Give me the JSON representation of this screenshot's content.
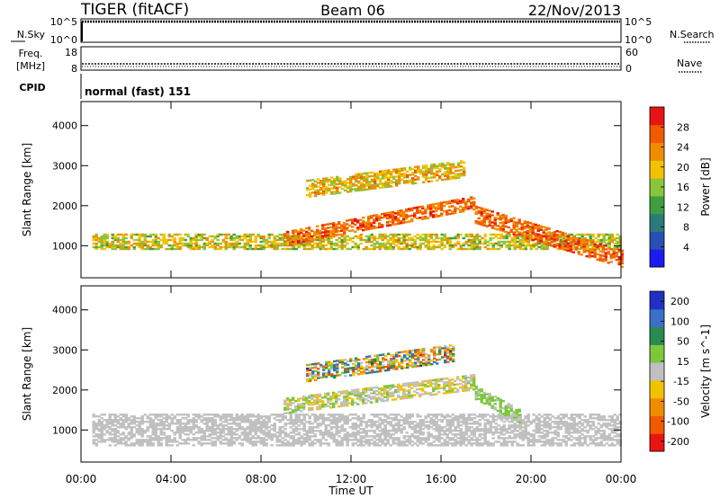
{
  "header": {
    "radar": "TIGER (fitACF)",
    "beam": "Beam 06",
    "date": "22/Nov/2013"
  },
  "panels": {
    "nsky": {
      "left_label": "N.Sky",
      "right_label": "N.Search",
      "left_ticks": [
        "10^5",
        "10^0"
      ],
      "right_ticks": [
        "10^5",
        "10^0"
      ]
    },
    "freq": {
      "left_label_line1": "Freq.",
      "left_label_line2": "[MHz]",
      "right_label": "Nave",
      "left_ticks": [
        "18",
        "8"
      ],
      "right_ticks": [
        "60",
        "0"
      ]
    },
    "cpid": {
      "left_label": "CPID",
      "mode_text": "normal (fast) 151"
    }
  },
  "colors": {
    "power_scale": [
      "#1b1bf0",
      "#2850b4",
      "#2d7a78",
      "#3f9e3f",
      "#89c53c",
      "#f2c200",
      "#f08c00",
      "#f25a00",
      "#e81414"
    ],
    "velocity_scale": [
      "#2030c0",
      "#3a70c8",
      "#2a8a50",
      "#7cc83c",
      "#c0c0c0",
      "#f2c200",
      "#f08c00",
      "#f25a00",
      "#e81414"
    ]
  },
  "chart_data": [
    {
      "type": "heatmap",
      "title": "",
      "xlabel": "Time UT",
      "ylabel": "Slant Range [km]",
      "x_ticks": [
        "00:00",
        "04:00",
        "08:00",
        "12:00",
        "16:00",
        "20:00",
        "00:00"
      ],
      "y_ticks": [
        "1000",
        "2000",
        "3000",
        "4000"
      ],
      "xlim_hours": [
        0,
        24
      ],
      "ylim_km": [
        200,
        4600
      ],
      "colorbar": {
        "label": "Power [dB]",
        "ticks": [
          "4",
          "8",
          "12",
          "16",
          "20",
          "24",
          "28"
        ],
        "range": [
          0,
          30
        ]
      },
      "echo_bands": [
        {
          "name": "main",
          "start_h": 0.5,
          "end_h": 24,
          "range_km": [
            900,
            1300
          ],
          "power_db": [
            12,
            22
          ]
        },
        {
          "name": "rising",
          "start_h": 9,
          "end_h": 17.5,
          "range_km": [
            1300,
            2200
          ],
          "power_db": [
            20,
            28
          ]
        },
        {
          "name": "upper",
          "start_h": 10,
          "end_h": 17,
          "range_km": [
            2200,
            3100
          ],
          "power_db": [
            14,
            24
          ]
        },
        {
          "name": "falling",
          "start_h": 17.5,
          "end_h": 24,
          "range_km": [
            500,
            2000
          ],
          "power_db": [
            20,
            28
          ]
        }
      ]
    },
    {
      "type": "heatmap",
      "title": "",
      "xlabel": "Time UT",
      "ylabel": "Slant Range [km]",
      "x_ticks": [
        "00:00",
        "04:00",
        "08:00",
        "12:00",
        "16:00",
        "20:00",
        "00:00"
      ],
      "y_ticks": [
        "1000",
        "2000",
        "3000",
        "4000"
      ],
      "xlim_hours": [
        0,
        24
      ],
      "ylim_km": [
        200,
        4600
      ],
      "colorbar": {
        "label": "Velocity [m s^-1]",
        "ticks": [
          "200",
          "100",
          "50",
          "15",
          "-15",
          "-50",
          "-100",
          "-200"
        ],
        "range": [
          -250,
          250
        ]
      },
      "echo_bands": [
        {
          "name": "ground-scatter",
          "start_h": 0.5,
          "end_h": 24,
          "range_km": [
            600,
            1400
          ],
          "velocity": [
            -15,
            15
          ]
        },
        {
          "name": "mid",
          "start_h": 9,
          "end_h": 17.5,
          "range_km": [
            1500,
            2300
          ],
          "velocity": [
            -60,
            60
          ]
        },
        {
          "name": "upper",
          "start_h": 10,
          "end_h": 16.5,
          "range_km": [
            2300,
            3200
          ],
          "velocity": [
            -200,
            200
          ]
        },
        {
          "name": "green",
          "start_h": 17.5,
          "end_h": 19.5,
          "range_km": [
            1400,
            2100
          ],
          "velocity": [
            15,
            60
          ]
        }
      ]
    }
  ]
}
